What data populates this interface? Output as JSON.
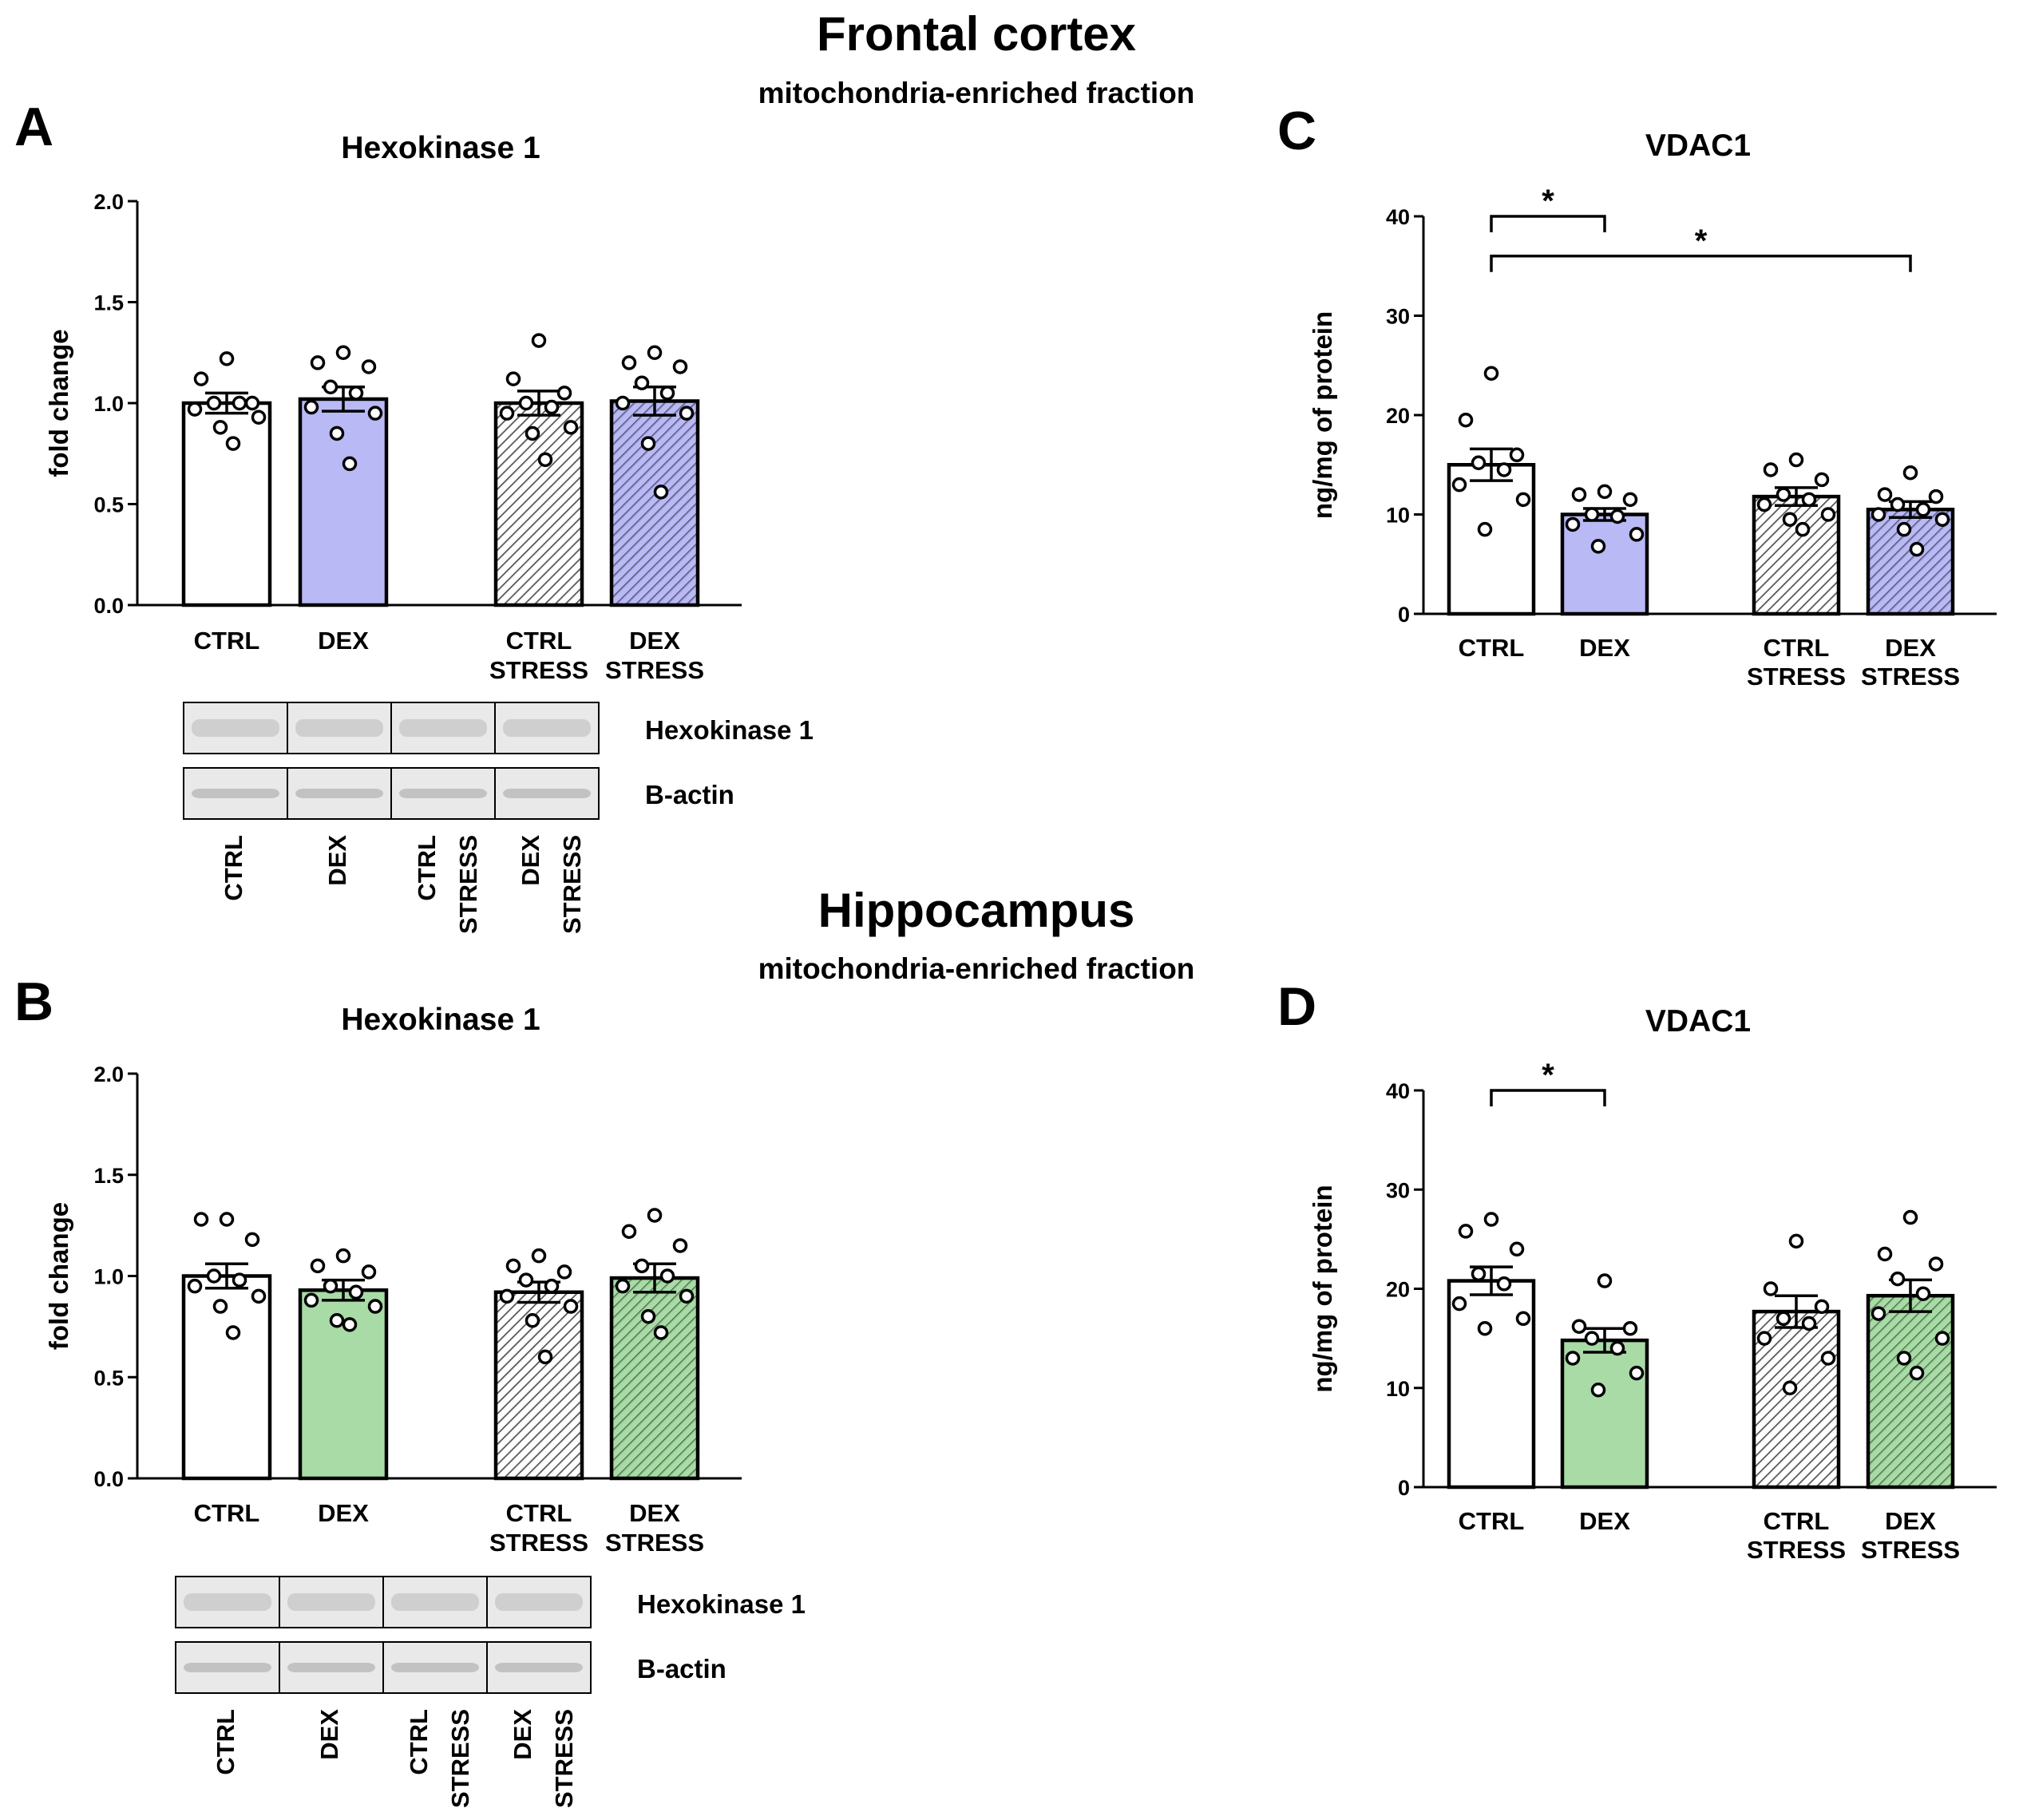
{
  "figure": {
    "section_top": {
      "title": "Frontal cortex",
      "subtitle": "mitochondria-enriched fraction"
    },
    "section_bottom": {
      "title": "Hippocampus",
      "subtitle": "mitochondria-enriched fraction"
    },
    "panel_letters": {
      "a": "A",
      "b": "B",
      "c": "C",
      "d": "D"
    }
  },
  "colors": {
    "ctrl": "#ffffff",
    "dex_frontal": "#b9b9f5",
    "dex_hippo": "#a9dba7",
    "stress_hatch": "#ffffff",
    "dex_stress_frontal_bg": "#8c8ccc",
    "dex_stress_hippo_bg": "#7fbf7d"
  },
  "chart_data": [
    {
      "panel": "A",
      "type": "bar",
      "title": "Hexokinase 1",
      "xlabel": "",
      "ylabel": "fold change",
      "ylim": [
        0,
        2.0
      ],
      "yticks": [
        "0.0",
        "0.5",
        "1.0",
        "1.5",
        "2.0"
      ],
      "categories": [
        [
          "CTRL"
        ],
        [
          "DEX"
        ],
        [
          "CTRL",
          "STRESS"
        ],
        [
          "DEX",
          "STRESS"
        ]
      ],
      "values": [
        1.0,
        1.02,
        1.0,
        1.01
      ],
      "sem": [
        0.05,
        0.06,
        0.06,
        0.07
      ],
      "points": [
        [
          1.22,
          1.12,
          1.0,
          1.0,
          1.0,
          0.97,
          0.93,
          0.88,
          0.8
        ],
        [
          1.25,
          1.2,
          1.18,
          1.08,
          1.05,
          0.98,
          0.95,
          0.85,
          0.7
        ],
        [
          1.31,
          1.12,
          1.05,
          1.0,
          0.98,
          0.95,
          0.88,
          0.85,
          0.72
        ],
        [
          1.25,
          1.2,
          1.18,
          1.1,
          1.05,
          1.0,
          0.95,
          0.8,
          0.56
        ]
      ],
      "significance": []
    },
    {
      "panel": "B",
      "type": "bar",
      "title": "Hexokinase 1",
      "xlabel": "",
      "ylabel": "fold change",
      "ylim": [
        0,
        2.0
      ],
      "yticks": [
        "0.0",
        "0.5",
        "1.0",
        "1.5",
        "2.0"
      ],
      "categories": [
        [
          "CTRL"
        ],
        [
          "DEX"
        ],
        [
          "CTRL",
          "STRESS"
        ],
        [
          "DEX",
          "STRESS"
        ]
      ],
      "values": [
        1.0,
        0.93,
        0.92,
        0.99
      ],
      "sem": [
        0.06,
        0.05,
        0.05,
        0.07
      ],
      "points": [
        [
          1.28,
          1.28,
          1.18,
          1.0,
          0.98,
          0.95,
          0.9,
          0.85,
          0.72
        ],
        [
          1.1,
          1.05,
          1.02,
          0.95,
          0.92,
          0.88,
          0.85,
          0.78,
          0.76
        ],
        [
          1.1,
          1.05,
          1.02,
          0.98,
          0.95,
          0.9,
          0.85,
          0.78,
          0.6
        ],
        [
          1.3,
          1.22,
          1.15,
          1.05,
          1.0,
          0.95,
          0.9,
          0.8,
          0.72
        ]
      ],
      "significance": []
    },
    {
      "panel": "C",
      "type": "bar",
      "title": "VDAC1",
      "xlabel": "",
      "ylabel": "ng/mg of protein",
      "ylim": [
        0,
        40
      ],
      "yticks": [
        "0",
        "10",
        "20",
        "30",
        "40"
      ],
      "categories": [
        [
          "CTRL"
        ],
        [
          "DEX"
        ],
        [
          "CTRL",
          "STRESS"
        ],
        [
          "DEX",
          "STRESS"
        ]
      ],
      "values": [
        15.0,
        10.0,
        11.8,
        10.5
      ],
      "sem": [
        1.6,
        0.6,
        0.9,
        0.8
      ],
      "points": [
        [
          24.2,
          19.5,
          16.0,
          15.2,
          14.5,
          13.0,
          11.5,
          8.5
        ],
        [
          12.3,
          12.0,
          11.5,
          10.0,
          9.8,
          9.0,
          8.0,
          6.8
        ],
        [
          15.5,
          14.5,
          13.5,
          12.0,
          11.5,
          11.0,
          10.0,
          9.5,
          8.5
        ],
        [
          14.2,
          12.0,
          11.8,
          11.0,
          10.5,
          10.0,
          9.5,
          8.5,
          6.5
        ]
      ],
      "significance": [
        {
          "from": 0,
          "to": 1,
          "y": 40,
          "label": "*"
        },
        {
          "from": 0,
          "to": 3,
          "y": 36,
          "label": "*"
        }
      ]
    },
    {
      "panel": "D",
      "type": "bar",
      "title": "VDAC1",
      "xlabel": "",
      "ylabel": "ng/mg of protein",
      "ylim": [
        0,
        40
      ],
      "yticks": [
        "0",
        "10",
        "20",
        "30",
        "40"
      ],
      "categories": [
        [
          "CTRL"
        ],
        [
          "DEX"
        ],
        [
          "CTRL",
          "STRESS"
        ],
        [
          "DEX",
          "STRESS"
        ]
      ],
      "values": [
        20.8,
        14.8,
        17.7,
        19.3
      ],
      "sem": [
        1.4,
        1.2,
        1.6,
        1.6
      ],
      "points": [
        [
          27.0,
          25.8,
          24.0,
          21.5,
          20.5,
          18.5,
          17.0,
          16.0
        ],
        [
          20.8,
          16.2,
          16.0,
          15.0,
          14.0,
          13.0,
          11.5,
          9.8
        ],
        [
          24.8,
          20.0,
          18.2,
          17.0,
          16.5,
          15.0,
          13.0,
          10.0
        ],
        [
          27.2,
          23.5,
          22.5,
          21.0,
          19.5,
          17.5,
          15.0,
          13.0,
          11.5
        ]
      ],
      "significance": [
        {
          "from": 0,
          "to": 1,
          "y": 40,
          "label": "*"
        }
      ]
    }
  ],
  "blots": {
    "top": {
      "rows": [
        "Hexokinase 1",
        "B-actin"
      ],
      "lanes": [
        [
          "CTRL"
        ],
        [
          "DEX"
        ],
        [
          "CTRL",
          "STRESS"
        ],
        [
          "DEX",
          "STRESS"
        ]
      ]
    },
    "bottom": {
      "rows": [
        "Hexokinase 1",
        "B-actin"
      ],
      "lanes": [
        [
          "CTRL"
        ],
        [
          "DEX"
        ],
        [
          "CTRL",
          "STRESS"
        ],
        [
          "DEX",
          "STRESS"
        ]
      ]
    }
  }
}
